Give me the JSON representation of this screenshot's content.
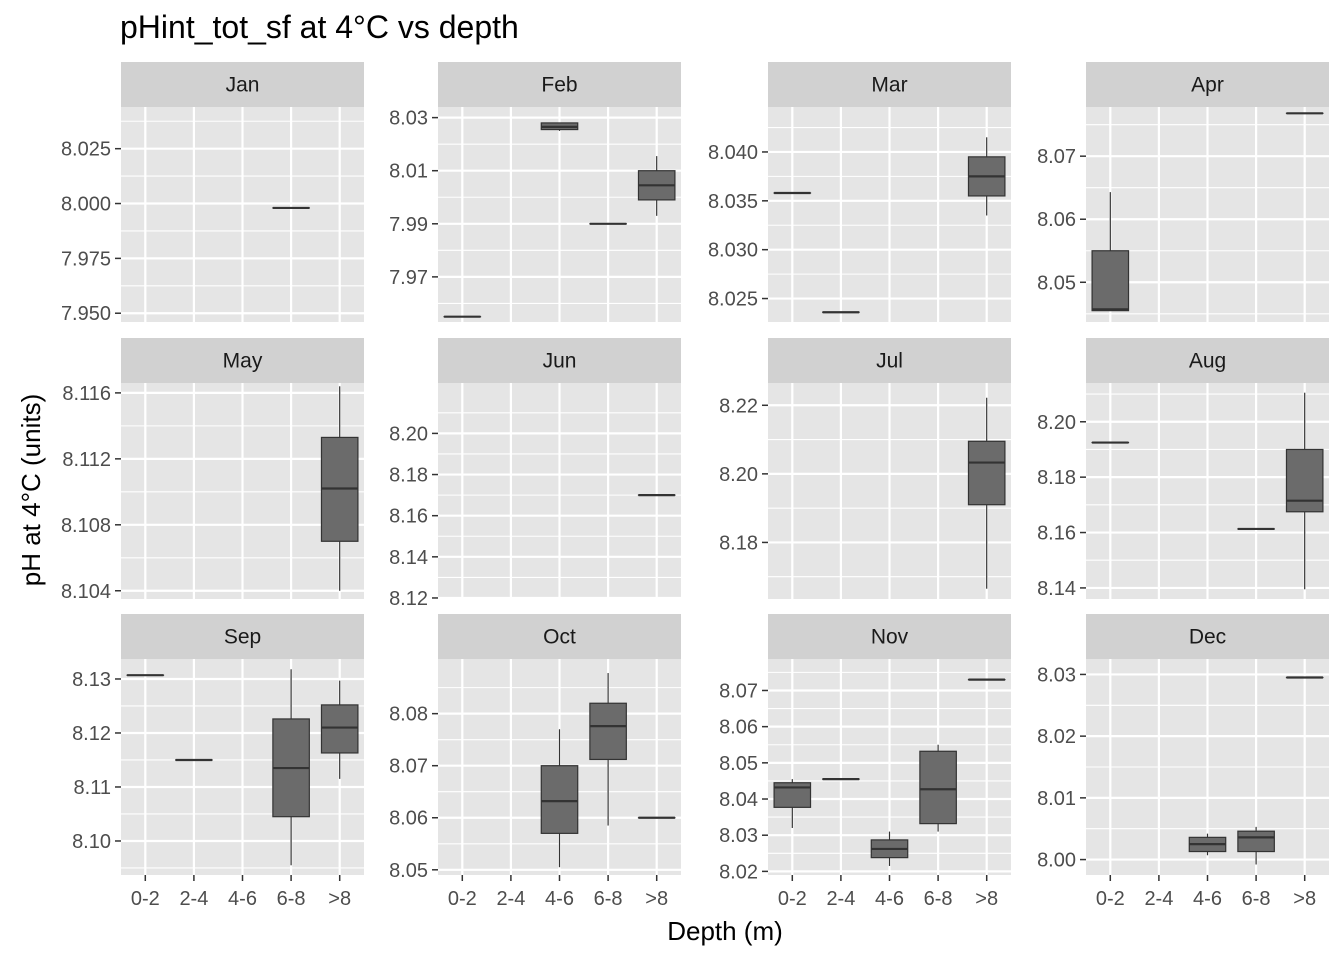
{
  "chart_data": {
    "type": "boxplot",
    "title": "pHint_tot_sf at 4°C vs depth",
    "xlabel": "Depth (m)",
    "ylabel": "pH at 4°C (units)",
    "categories": [
      "0-2",
      "2-4",
      "4-6",
      "6-8",
      ">8"
    ],
    "grid": true,
    "colors": {
      "panel": "#e5e5e5",
      "grid": "#ffffff",
      "strip": "#d1d1d1",
      "box_fill": "#6b6b6b",
      "line": "#333333",
      "tick": "#4d4d4d"
    },
    "facets": [
      {
        "label": "Jan",
        "ylim": [
          7.946,
          8.044
        ],
        "yticks": [
          7.95,
          7.975,
          8.0,
          8.025
        ],
        "ytick_labels": [
          "7.950",
          "7.975",
          "8.000",
          "8.025"
        ],
        "boxes": [
          {
            "category": "6-8",
            "min": 7.998,
            "q1": 7.998,
            "median": 7.998,
            "q3": 7.998,
            "max": 7.998
          }
        ]
      },
      {
        "label": "Feb",
        "ylim": [
          7.953,
          8.034
        ],
        "yticks": [
          7.97,
          7.99,
          8.01,
          8.03
        ],
        "ytick_labels": [
          "7.97",
          "7.99",
          "8.01",
          "8.03"
        ],
        "boxes": [
          {
            "category": "0-2",
            "min": 7.955,
            "q1": 7.955,
            "median": 7.955,
            "q3": 7.955,
            "max": 7.955
          },
          {
            "category": "4-6",
            "min": 8.025,
            "q1": 8.0255,
            "median": 8.0265,
            "q3": 8.028,
            "max": 8.028
          },
          {
            "category": "6-8",
            "min": 7.99,
            "q1": 7.99,
            "median": 7.99,
            "q3": 7.99,
            "max": 7.99
          },
          {
            "category": ">8",
            "min": 7.993,
            "q1": 7.999,
            "median": 8.0045,
            "q3": 8.01,
            "max": 8.0155
          }
        ]
      },
      {
        "label": "Mar",
        "ylim": [
          8.0226,
          8.0446
        ],
        "yticks": [
          8.025,
          8.03,
          8.035,
          8.04
        ],
        "ytick_labels": [
          "8.025",
          "8.030",
          "8.035",
          "8.040"
        ],
        "boxes": [
          {
            "category": "0-2",
            "min": 8.0358,
            "q1": 8.0358,
            "median": 8.0358,
            "q3": 8.0358,
            "max": 8.0358
          },
          {
            "category": "2-4",
            "min": 8.0236,
            "q1": 8.0236,
            "median": 8.0236,
            "q3": 8.0236,
            "max": 8.0236
          },
          {
            "category": ">8",
            "min": 8.0335,
            "q1": 8.0355,
            "median": 8.0375,
            "q3": 8.0395,
            "max": 8.0415
          }
        ]
      },
      {
        "label": "Apr",
        "ylim": [
          8.0437,
          8.0778
        ],
        "yticks": [
          8.05,
          8.06,
          8.07
        ],
        "ytick_labels": [
          "8.05",
          "8.06",
          "8.07"
        ],
        "boxes": [
          {
            "category": "0-2",
            "min": 8.0455,
            "q1": 8.0455,
            "median": 8.0457,
            "q3": 8.055,
            "max": 8.0643
          },
          {
            "category": ">8",
            "min": 8.0768,
            "q1": 8.0768,
            "median": 8.0768,
            "q3": 8.0768,
            "max": 8.0768
          }
        ]
      },
      {
        "label": "May",
        "ylim": [
          8.1035,
          8.1166
        ],
        "yticks": [
          8.104,
          8.108,
          8.112,
          8.116
        ],
        "ytick_labels": [
          "8.104",
          "8.108",
          "8.112",
          "8.116"
        ],
        "boxes": [
          {
            "category": ">8",
            "min": 8.104,
            "q1": 8.107,
            "median": 8.1102,
            "q3": 8.1133,
            "max": 8.1164
          }
        ]
      },
      {
        "label": "Jun",
        "ylim": [
          8.1195,
          8.2245
        ],
        "yticks": [
          8.12,
          8.14,
          8.16,
          8.18,
          8.2
        ],
        "ytick_labels": [
          "8.12",
          "8.14",
          "8.16",
          "8.18",
          "8.20"
        ],
        "boxes": [
          {
            "category": ">8",
            "min": 8.17,
            "q1": 8.17,
            "median": 8.17,
            "q3": 8.17,
            "max": 8.17
          }
        ]
      },
      {
        "label": "Jul",
        "ylim": [
          8.1635,
          8.2265
        ],
        "yticks": [
          8.18,
          8.2,
          8.22
        ],
        "ytick_labels": [
          "8.18",
          "8.20",
          "8.22"
        ],
        "boxes": [
          {
            "category": ">8",
            "min": 8.1665,
            "q1": 8.191,
            "median": 8.2033,
            "q3": 8.2095,
            "max": 8.2222
          }
        ]
      },
      {
        "label": "Aug",
        "ylim": [
          8.136,
          8.214
        ],
        "yticks": [
          8.14,
          8.16,
          8.18,
          8.2
        ],
        "ytick_labels": [
          "8.14",
          "8.16",
          "8.18",
          "8.20"
        ],
        "boxes": [
          {
            "category": "0-2",
            "min": 8.1925,
            "q1": 8.1925,
            "median": 8.1925,
            "q3": 8.1925,
            "max": 8.1925
          },
          {
            "category": "6-8",
            "min": 8.1613,
            "q1": 8.1613,
            "median": 8.1613,
            "q3": 8.1613,
            "max": 8.1613
          },
          {
            "category": ">8",
            "min": 8.1395,
            "q1": 8.1675,
            "median": 8.1715,
            "q3": 8.19,
            "max": 8.2105
          }
        ]
      },
      {
        "label": "Sep",
        "ylim": [
          8.0937,
          8.1337
        ],
        "yticks": [
          8.1,
          8.11,
          8.12,
          8.13
        ],
        "ytick_labels": [
          "8.10",
          "8.11",
          "8.12",
          "8.13"
        ],
        "boxes": [
          {
            "category": "0-2",
            "min": 8.1307,
            "q1": 8.1307,
            "median": 8.1307,
            "q3": 8.1307,
            "max": 8.1307
          },
          {
            "category": "2-4",
            "min": 8.115,
            "q1": 8.115,
            "median": 8.115,
            "q3": 8.115,
            "max": 8.115
          },
          {
            "category": "6-8",
            "min": 8.0955,
            "q1": 8.1045,
            "median": 8.1135,
            "q3": 8.1226,
            "max": 8.1318
          },
          {
            "category": ">8",
            "min": 8.1115,
            "q1": 8.1163,
            "median": 8.121,
            "q3": 8.1252,
            "max": 8.1297
          }
        ]
      },
      {
        "label": "Oct",
        "ylim": [
          8.049,
          8.0905
        ],
        "yticks": [
          8.05,
          8.06,
          8.07,
          8.08
        ],
        "ytick_labels": [
          "8.05",
          "8.06",
          "8.07",
          "8.08"
        ],
        "boxes": [
          {
            "category": "4-6",
            "min": 8.0505,
            "q1": 8.057,
            "median": 8.0632,
            "q3": 8.07,
            "max": 8.077
          },
          {
            "category": "6-8",
            "min": 8.0585,
            "q1": 8.0712,
            "median": 8.0776,
            "q3": 8.082,
            "max": 8.0878
          },
          {
            "category": ">8",
            "min": 8.06,
            "q1": 8.06,
            "median": 8.06,
            "q3": 8.06,
            "max": 8.06
          }
        ]
      },
      {
        "label": "Nov",
        "ylim": [
          8.019,
          8.0787
        ],
        "yticks": [
          8.02,
          8.03,
          8.04,
          8.05,
          8.06,
          8.07
        ],
        "ytick_labels": [
          "8.02",
          "8.03",
          "8.04",
          "8.05",
          "8.06",
          "8.07"
        ],
        "boxes": [
          {
            "category": "0-2",
            "min": 8.032,
            "q1": 8.0377,
            "median": 8.0432,
            "q3": 8.0445,
            "max": 8.0455
          },
          {
            "category": "2-4",
            "min": 8.0455,
            "q1": 8.0455,
            "median": 8.0455,
            "q3": 8.0455,
            "max": 8.0455
          },
          {
            "category": "4-6",
            "min": 8.0215,
            "q1": 8.0238,
            "median": 8.0262,
            "q3": 8.0287,
            "max": 8.031
          },
          {
            "category": "6-8",
            "min": 8.031,
            "q1": 8.0332,
            "median": 8.0427,
            "q3": 8.0532,
            "max": 8.055
          },
          {
            "category": ">8",
            "min": 8.073,
            "q1": 8.073,
            "median": 8.073,
            "q3": 8.073,
            "max": 8.073
          }
        ]
      },
      {
        "label": "Dec",
        "ylim": [
          7.9975,
          8.0325
        ],
        "yticks": [
          8.0,
          8.01,
          8.02,
          8.03
        ],
        "ytick_labels": [
          "8.00",
          "8.01",
          "8.02",
          "8.03"
        ],
        "boxes": [
          {
            "category": "4-6",
            "min": 8.0007,
            "q1": 8.0013,
            "median": 8.0025,
            "q3": 8.0036,
            "max": 8.0042
          },
          {
            "category": "6-8",
            "min": 7.9992,
            "q1": 8.0013,
            "median": 8.0036,
            "q3": 8.0046,
            "max": 8.0053
          },
          {
            "category": ">8",
            "min": 8.0295,
            "q1": 8.0295,
            "median": 8.0295,
            "q3": 8.0295,
            "max": 8.0295
          }
        ]
      }
    ]
  }
}
